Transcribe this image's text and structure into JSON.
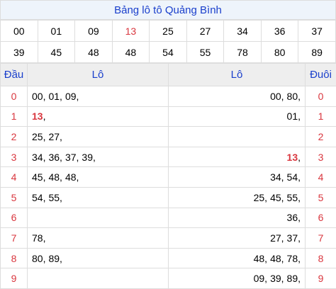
{
  "title": "Bảng lô tô Quảng Bình",
  "highlight": "13",
  "numbers": [
    [
      "00",
      "01",
      "09",
      "13",
      "25",
      "27",
      "34",
      "36",
      "37"
    ],
    [
      "39",
      "45",
      "48",
      "48",
      "54",
      "55",
      "78",
      "80",
      "89"
    ]
  ],
  "table": {
    "headers": [
      "Đầu",
      "Lô",
      "Lô",
      "Đuôi"
    ],
    "rows": [
      {
        "head": "0",
        "left": [
          "00",
          "01",
          "09"
        ],
        "right": [
          "00",
          "80"
        ],
        "tail": "0"
      },
      {
        "head": "1",
        "left": [
          "13"
        ],
        "right": [
          "01"
        ],
        "tail": "1"
      },
      {
        "head": "2",
        "left": [
          "25",
          "27"
        ],
        "right": [],
        "tail": "2"
      },
      {
        "head": "3",
        "left": [
          "34",
          "36",
          "37",
          "39"
        ],
        "right": [
          "13"
        ],
        "tail": "3"
      },
      {
        "head": "4",
        "left": [
          "45",
          "48",
          "48"
        ],
        "right": [
          "34",
          "54"
        ],
        "tail": "4"
      },
      {
        "head": "5",
        "left": [
          "54",
          "55"
        ],
        "right": [
          "25",
          "45",
          "55"
        ],
        "tail": "5"
      },
      {
        "head": "6",
        "left": [],
        "right": [
          "36"
        ],
        "tail": "6"
      },
      {
        "head": "7",
        "left": [
          "78"
        ],
        "right": [
          "27",
          "37"
        ],
        "tail": "7"
      },
      {
        "head": "8",
        "left": [
          "80",
          "89"
        ],
        "right": [
          "48",
          "48",
          "78"
        ],
        "tail": "8"
      },
      {
        "head": "9",
        "left": [],
        "right": [
          "09",
          "39",
          "89"
        ],
        "tail": "9"
      }
    ]
  }
}
